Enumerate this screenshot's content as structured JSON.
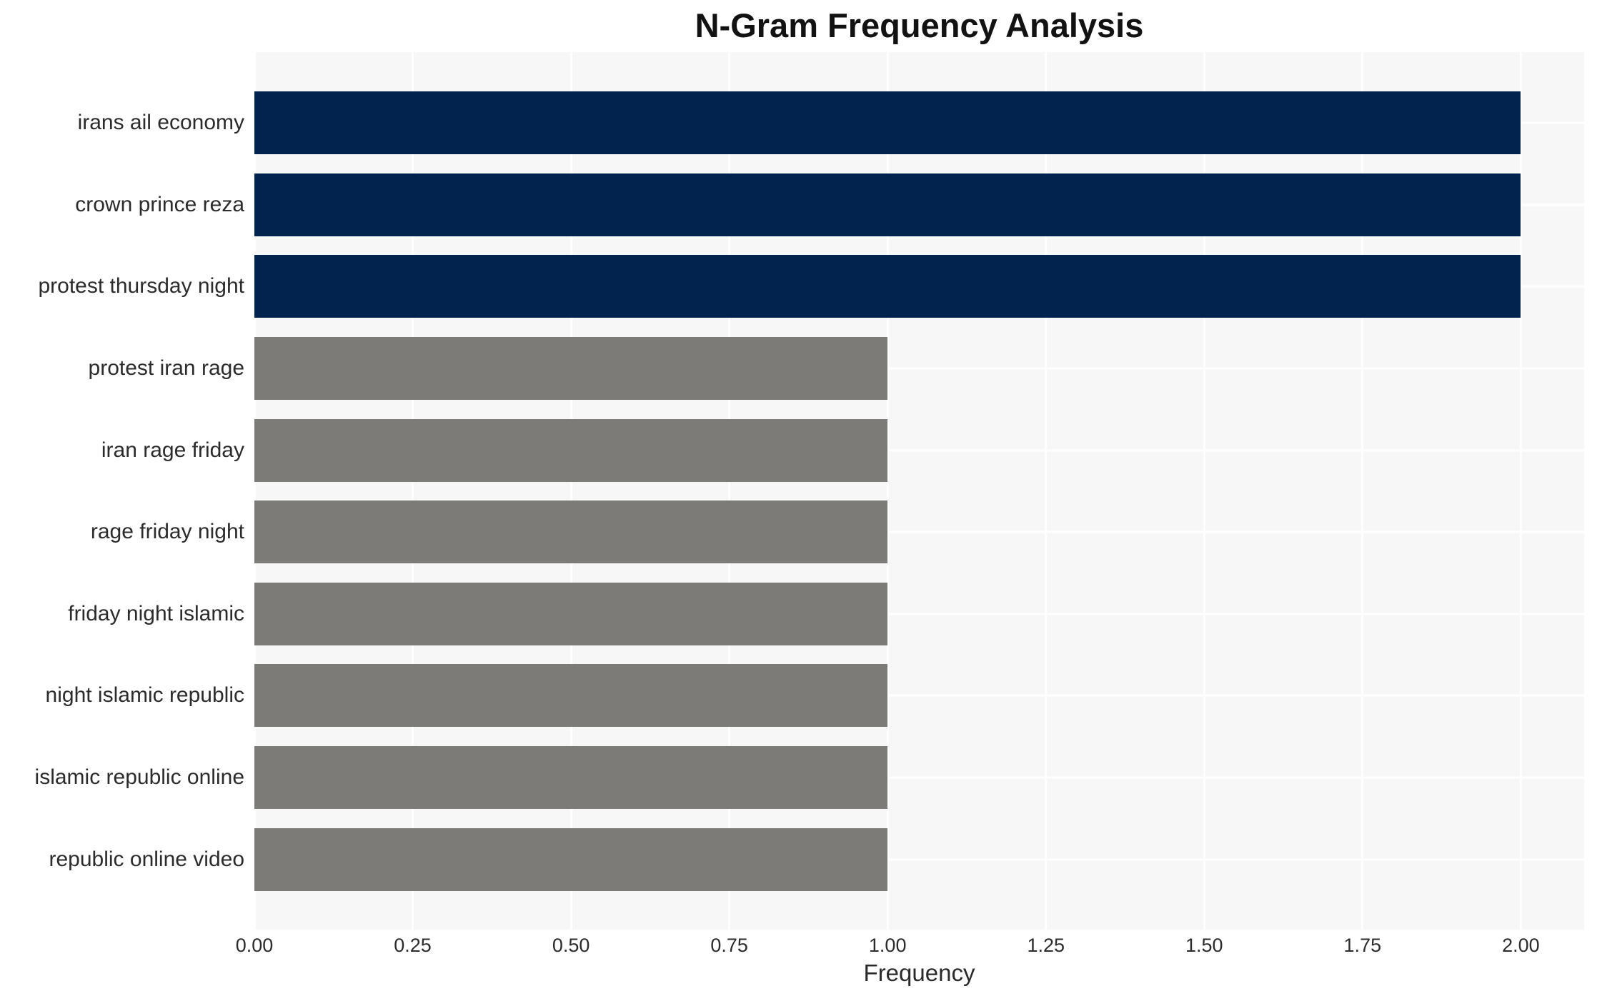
{
  "chart_data": {
    "type": "bar",
    "orientation": "horizontal",
    "title": "N-Gram Frequency Analysis",
    "xlabel": "Frequency",
    "ylabel": "",
    "categories": [
      "irans ail economy",
      "crown prince reza",
      "protest thursday night",
      "protest iran rage",
      "iran rage friday",
      "rage friday night",
      "friday night islamic",
      "night islamic republic",
      "islamic republic online",
      "republic online video"
    ],
    "values": [
      2,
      2,
      2,
      1,
      1,
      1,
      1,
      1,
      1,
      1
    ],
    "bar_colors": [
      "#02234e",
      "#02234e",
      "#02234e",
      "#7c7b77",
      "#7c7b77",
      "#7c7b77",
      "#7c7b77",
      "#7c7b77",
      "#7c7b77",
      "#7c7b77"
    ],
    "xlim": [
      0,
      2.1
    ],
    "xticks": [
      0.0,
      0.25,
      0.5,
      0.75,
      1.0,
      1.25,
      1.5,
      1.75,
      2.0
    ],
    "xtick_labels": [
      "0.00",
      "0.25",
      "0.50",
      "0.75",
      "1.00",
      "1.25",
      "1.50",
      "1.75",
      "2.00"
    ],
    "grid": true,
    "legend": false,
    "plot_background": "#f7f7f7",
    "grid_color": "#ffffff"
  }
}
